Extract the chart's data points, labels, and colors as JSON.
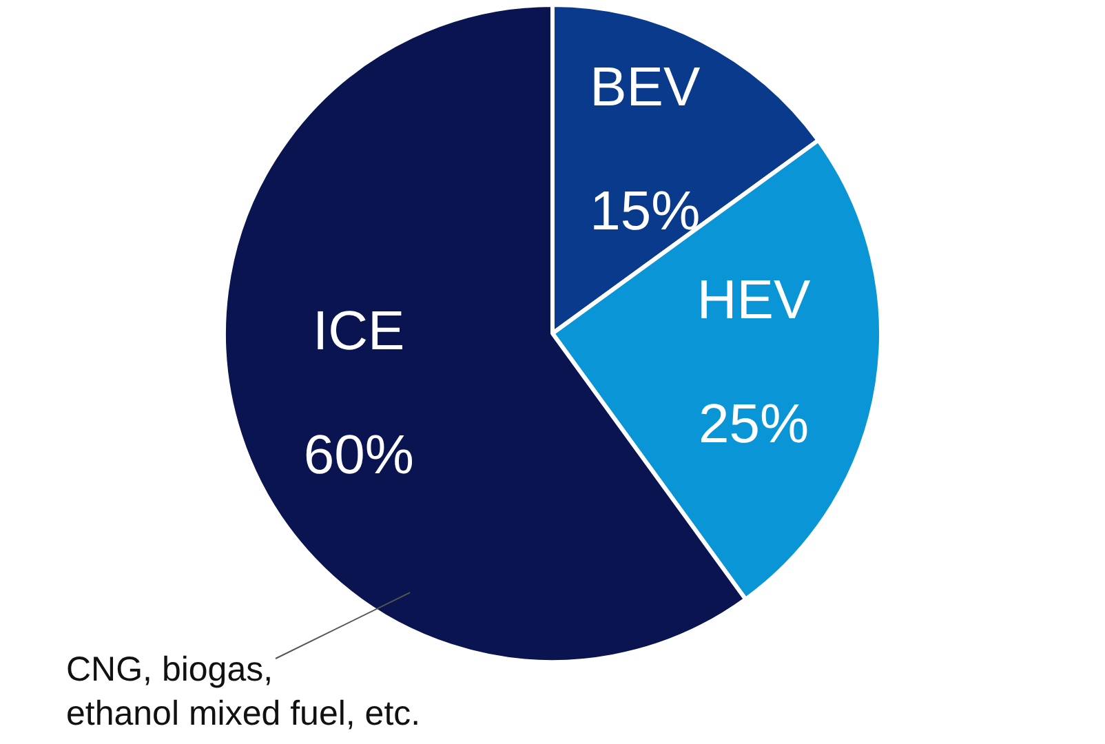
{
  "chart_data": {
    "type": "pie",
    "categories": [
      "BEV",
      "HEV",
      "ICE"
    ],
    "values": [
      15,
      25,
      60
    ],
    "colors": [
      "#0a3a8c",
      "#0a96d6",
      "#0a1450"
    ],
    "value_labels": [
      "15%",
      "25%",
      "60%"
    ],
    "legend": false,
    "annotations": [
      "CNG, biogas,\nethanol mixed fuel, etc."
    ]
  }
}
